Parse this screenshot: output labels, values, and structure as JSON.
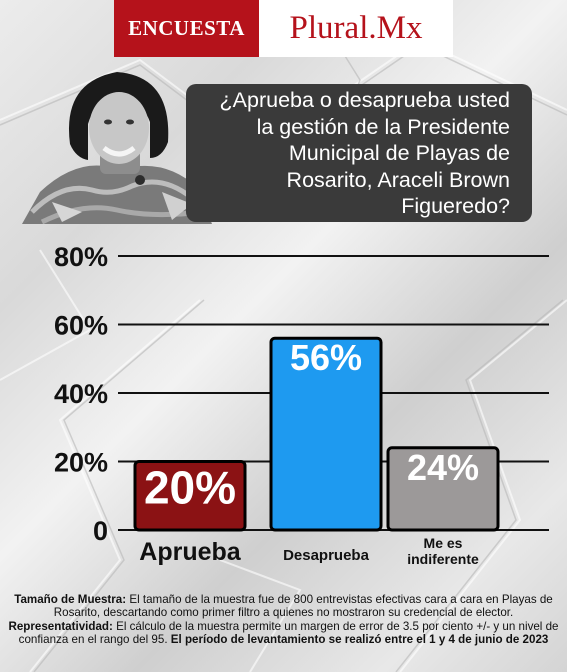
{
  "brand": {
    "left": "ENCUESTA",
    "right": "Plural.Mx"
  },
  "question": "¿Aprueba o desaprueba usted la gestión de la Presidente Municipal de Playas de Rosarito, Araceli Brown Figueredo?",
  "chart_data": {
    "type": "bar",
    "categories": [
      "Aprueba",
      "Desaprueba",
      "Me es indiferente"
    ],
    "category_lines": [
      [
        "Aprueba"
      ],
      [
        "Desaprueba"
      ],
      [
        "Me es",
        "indiferente"
      ]
    ],
    "values": [
      20,
      56,
      24
    ],
    "value_labels": [
      "20%",
      "56%",
      "24%"
    ],
    "colors": [
      "#8b1214",
      "#1e9af0",
      "#9c9999"
    ],
    "yticks": [
      "0",
      "20%",
      "40%",
      "60%",
      "80%"
    ],
    "ylim": [
      0,
      80
    ],
    "grid": true
  },
  "footer": {
    "sample_label": "Tamaño de Muestra:",
    "sample_text": "El tamaño de la muestra fue de 800 entrevistas efectivas cara a cara en Playas de Rosarito, descartando como primer filtro a quienes no mostraron su credencial de elector.",
    "rep_label": "Representatividad:",
    "rep_text": "El cálculo de la muestra permite un margen de error de 3.5 por ciento +/- y un nivel de confianza en el rango del 95.",
    "period_text": "El período de levantamiento se realizó entre el 1 y 4 de junio de 2023"
  }
}
